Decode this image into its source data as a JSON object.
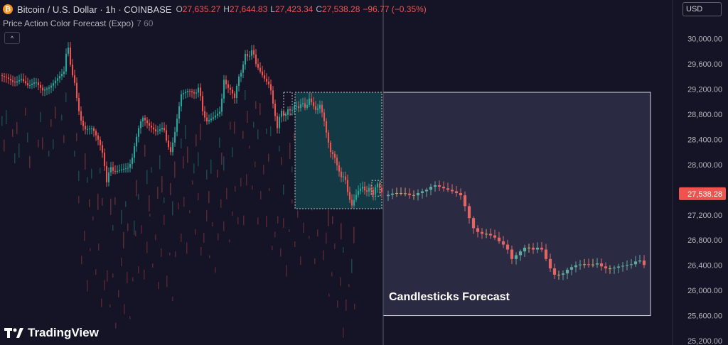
{
  "header": {
    "coin_glyph": "₿",
    "symbol": "Bitcoin / U.S. Dollar · 1h · COINBASE",
    "ohlc": [
      {
        "k": "O",
        "v": "27,635.27"
      },
      {
        "k": "H",
        "v": "27,644.83"
      },
      {
        "k": "L",
        "v": "27,423.34"
      },
      {
        "k": "C",
        "v": "27,538.28"
      },
      {
        "k": "",
        "v": "−96.77 (−0.35%)"
      }
    ]
  },
  "indicator": {
    "name": "Price Action Color Forecast (Expo)",
    "params": "7 60"
  },
  "controls": {
    "collapse_glyph": "^",
    "currency": "USD"
  },
  "brand": {
    "name": "TradingView"
  },
  "colors": {
    "bg": "#141426",
    "up": "#26a69a",
    "down": "#ef5350",
    "forecast_up": "#5fa8a0",
    "forecast_down": "#e06666",
    "forecast_neutral": "#c9a56b",
    "pattern_box": "#133a44",
    "forecast_box": "#2a2a42"
  },
  "chart_data": {
    "type": "candlestick",
    "ylim": [
      25200,
      30200
    ],
    "yticks": [
      "30,000.00",
      "29,600.00",
      "29,200.00",
      "28,800.00",
      "28,400.00",
      "28,000.00",
      "27,600.00",
      "27,200.00",
      "26,800.00",
      "26,400.00",
      "26,000.00",
      "25,600.00",
      "25,200.00"
    ],
    "last_price": {
      "value": 27538.28,
      "label": "27,538.28"
    },
    "history_path": [
      [
        0,
        29420
      ],
      [
        10,
        29380
      ],
      [
        20,
        29300
      ],
      [
        30,
        29360
      ],
      [
        40,
        29250
      ],
      [
        50,
        29320
      ],
      [
        60,
        29180
      ],
      [
        70,
        29230
      ],
      [
        80,
        29360
      ],
      [
        90,
        29480
      ],
      [
        95,
        29950
      ],
      [
        100,
        29500
      ],
      [
        105,
        29300
      ],
      [
        110,
        28900
      ],
      [
        115,
        28650
      ],
      [
        120,
        28560
      ],
      [
        130,
        28580
      ],
      [
        140,
        28350
      ],
      [
        145,
        28150
      ],
      [
        150,
        27720
      ],
      [
        155,
        27980
      ],
      [
        160,
        27880
      ],
      [
        170,
        27920
      ],
      [
        180,
        27950
      ],
      [
        185,
        28050
      ],
      [
        190,
        28350
      ],
      [
        195,
        28580
      ],
      [
        200,
        28760
      ],
      [
        210,
        28620
      ],
      [
        220,
        28520
      ],
      [
        230,
        28600
      ],
      [
        235,
        28330
      ],
      [
        240,
        28200
      ],
      [
        245,
        28450
      ],
      [
        250,
        28800
      ],
      [
        255,
        29120
      ],
      [
        265,
        29180
      ],
      [
        275,
        29120
      ],
      [
        280,
        29250
      ],
      [
        285,
        28850
      ],
      [
        290,
        28680
      ],
      [
        300,
        28750
      ],
      [
        310,
        28850
      ],
      [
        315,
        29350
      ],
      [
        320,
        29230
      ],
      [
        325,
        29180
      ],
      [
        330,
        29060
      ],
      [
        335,
        29380
      ],
      [
        340,
        29480
      ],
      [
        345,
        29760
      ],
      [
        350,
        29700
      ],
      [
        355,
        29850
      ],
      [
        360,
        29600
      ],
      [
        365,
        29500
      ],
      [
        370,
        29400
      ],
      [
        375,
        29320
      ],
      [
        380,
        29250
      ],
      [
        385,
        28900
      ],
      [
        390,
        28580
      ],
      [
        395,
        28880
      ],
      [
        400,
        28750
      ],
      [
        405,
        28880
      ],
      [
        410,
        28850
      ],
      [
        415,
        28950
      ],
      [
        420,
        28900
      ],
      [
        425,
        29000
      ],
      [
        430,
        28880
      ],
      [
        435,
        29050
      ],
      [
        440,
        28950
      ],
      [
        445,
        28850
      ],
      [
        450,
        28950
      ],
      [
        455,
        28750
      ],
      [
        460,
        28450
      ],
      [
        465,
        28200
      ],
      [
        470,
        28150
      ],
      [
        475,
        27950
      ],
      [
        480,
        27800
      ],
      [
        485,
        27820
      ],
      [
        490,
        27500
      ],
      [
        495,
        27350
      ],
      [
        500,
        27500
      ],
      [
        505,
        27600
      ],
      [
        510,
        27650
      ],
      [
        515,
        27550
      ],
      [
        520,
        27650
      ],
      [
        525,
        27520
      ],
      [
        530,
        27720
      ],
      [
        538,
        27538
      ]
    ],
    "pattern_range": {
      "x0": 415,
      "x1": 537,
      "y_low": 27300,
      "y_high": 29150
    },
    "forecast_range": {
      "x0": 539,
      "x1": 915,
      "y_low": 25600,
      "y_high": 29150
    },
    "forecast_label": "Candlesticks Forecast",
    "forecast_path": [
      [
        540,
        27500
      ],
      [
        555,
        27550
      ],
      [
        570,
        27540
      ],
      [
        580,
        27500
      ],
      [
        590,
        27560
      ],
      [
        600,
        27600
      ],
      [
        610,
        27680
      ],
      [
        620,
        27640
      ],
      [
        630,
        27600
      ],
      [
        640,
        27560
      ],
      [
        650,
        27500
      ],
      [
        655,
        27300
      ],
      [
        665,
        27000
      ],
      [
        675,
        26900
      ],
      [
        685,
        26900
      ],
      [
        695,
        26850
      ],
      [
        705,
        26750
      ],
      [
        712,
        26700
      ],
      [
        720,
        26500
      ],
      [
        730,
        26600
      ],
      [
        740,
        26700
      ],
      [
        750,
        26650
      ],
      [
        760,
        26700
      ],
      [
        770,
        26450
      ],
      [
        778,
        26250
      ],
      [
        790,
        26250
      ],
      [
        800,
        26350
      ],
      [
        810,
        26400
      ],
      [
        820,
        26420
      ],
      [
        830,
        26400
      ],
      [
        840,
        26430
      ],
      [
        850,
        26350
      ],
      [
        860,
        26350
      ],
      [
        870,
        26380
      ],
      [
        880,
        26400
      ],
      [
        890,
        26420
      ],
      [
        898,
        26500
      ],
      [
        908,
        26380
      ]
    ]
  }
}
